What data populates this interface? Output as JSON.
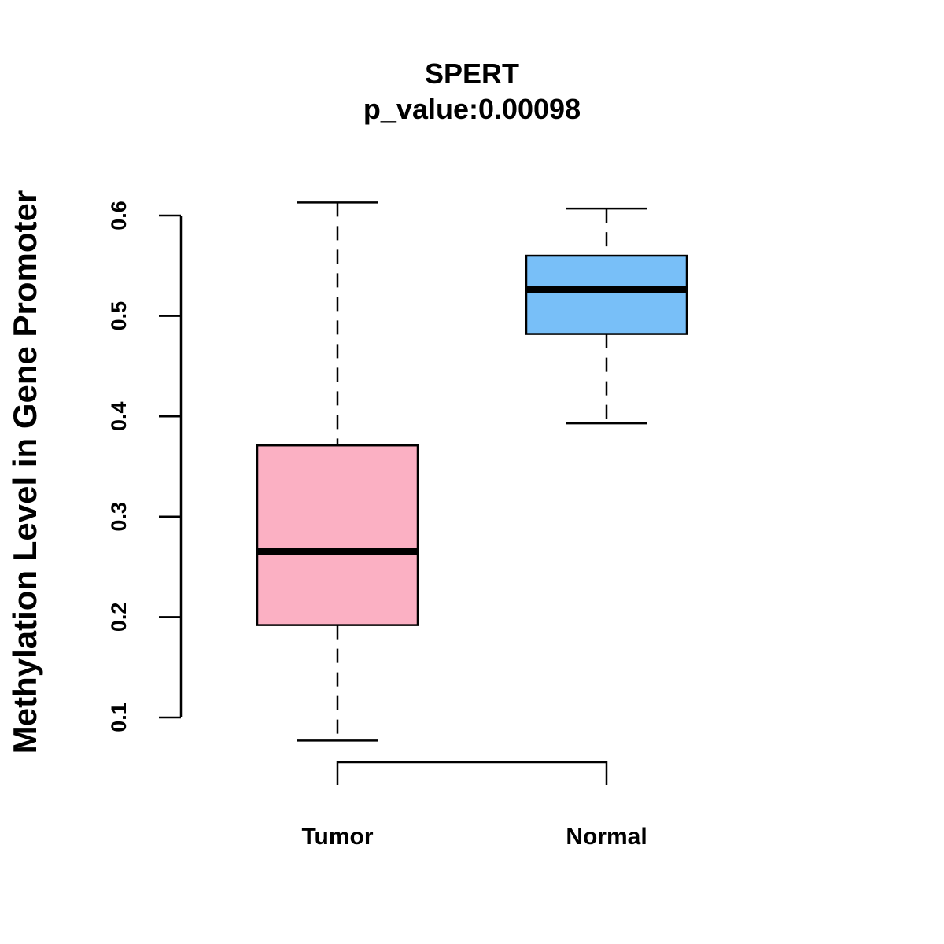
{
  "chart_data": {
    "type": "boxplot",
    "title": "SPERT",
    "subtitle": "p_value:0.00098",
    "ylabel": "Methylation Level in Gene Promoter",
    "xlabel": "",
    "yticks": [
      "0.1",
      "0.2",
      "0.3",
      "0.4",
      "0.5",
      "0.6"
    ],
    "categories": [
      "Tumor",
      "Normal"
    ],
    "series": [
      {
        "name": "Tumor",
        "color": "#fbb0c3",
        "whisker_low": 0.077,
        "q1": 0.192,
        "median": 0.265,
        "q3": 0.371,
        "whisker_high": 0.613
      },
      {
        "name": "Normal",
        "color": "#78bff8",
        "whisker_low": 0.393,
        "q1": 0.482,
        "median": 0.526,
        "q3": 0.56,
        "whisker_high": 0.607
      }
    ],
    "comparison_bracket": [
      "Tumor",
      "Normal"
    ]
  }
}
